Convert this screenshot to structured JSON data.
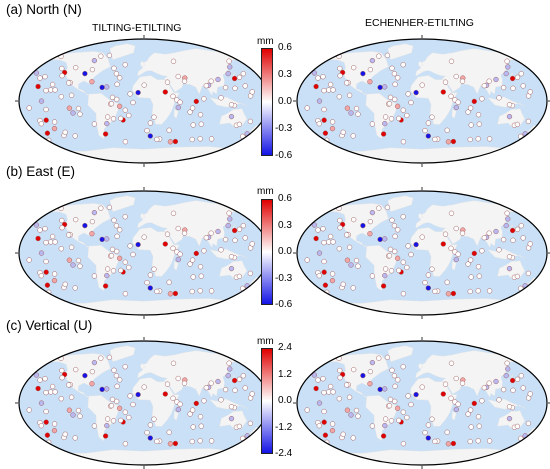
{
  "panels": {
    "north": {
      "label": "(a) North (N)"
    },
    "east": {
      "label": "(b) East (E)"
    },
    "vertical": {
      "label": "(c) Vertical (U)"
    }
  },
  "columns": {
    "left": "TILTING-ETILTING",
    "right": "ECHENHER-ETILTING"
  },
  "colorbars": {
    "unit": "mm",
    "north_ticks": [
      "0.6",
      "0.3",
      "0.0",
      "-0.3",
      "-0.6"
    ],
    "east_ticks": [
      "0.6",
      "0.3",
      "0.0",
      "-0.3",
      "-0.6"
    ],
    "vertical_ticks": [
      "2.4",
      "1.2",
      "0.0",
      "-1.2",
      "-2.4"
    ]
  },
  "colors": {
    "ocean": "#c9e0f7",
    "land": "#f4f4f4",
    "positive": "#e00000",
    "negative": "#1414e6",
    "neutral": "#ffffff"
  }
}
